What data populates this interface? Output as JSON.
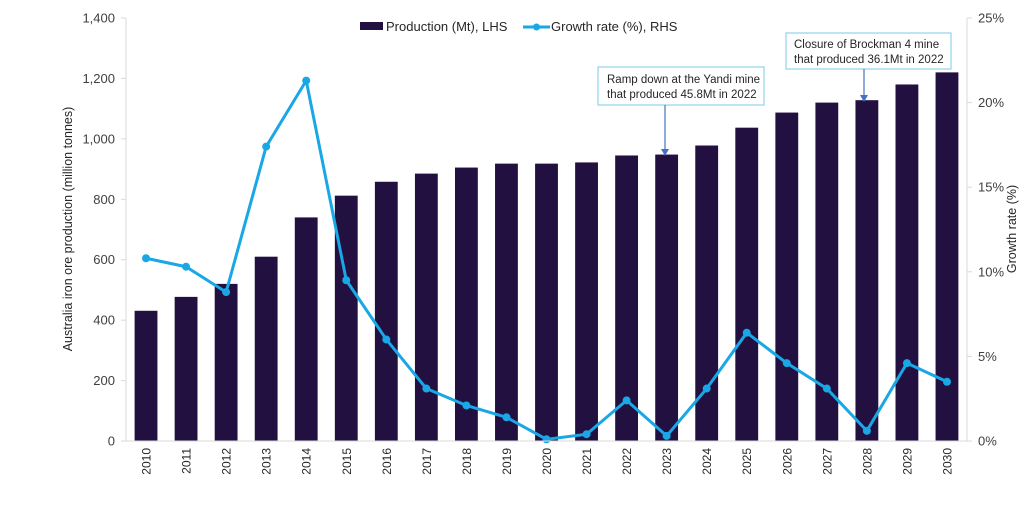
{
  "chart_data": {
    "type": "bar",
    "title": "",
    "categories": [
      "2010",
      "2011",
      "2012",
      "2013",
      "2014",
      "2015",
      "2016",
      "2017",
      "2018",
      "2019",
      "2020",
      "2021",
      "2022",
      "2023",
      "2024",
      "2025",
      "2026",
      "2027",
      "2028",
      "2029",
      "2030"
    ],
    "series": [
      {
        "name": "Production (Mt), LHS",
        "type": "bar",
        "axis": "left",
        "color": "#211040",
        "values": [
          431,
          477,
          520,
          610,
          740,
          812,
          858,
          885,
          905,
          918,
          918,
          922,
          945,
          948,
          978,
          1037,
          1087,
          1120,
          1128,
          1180,
          1220
        ]
      },
      {
        "name": "Growth rate (%), RHS",
        "type": "line",
        "axis": "right",
        "color": "#19a7e6",
        "values": [
          10.8,
          10.3,
          8.8,
          17.4,
          21.3,
          9.5,
          6.0,
          3.1,
          2.1,
          1.4,
          0.1,
          0.4,
          2.4,
          0.3,
          3.1,
          6.4,
          4.6,
          3.1,
          0.6,
          4.6,
          3.5
        ]
      }
    ],
    "ylabel": "Australia iron ore production (million tonnes)",
    "ylabel_right": "Growth rate (%)",
    "xlabel": "",
    "ylim": [
      0,
      1400
    ],
    "ylim_right": [
      0,
      25
    ],
    "yticks": [
      "0",
      "200",
      "400",
      "600",
      "800",
      "1,000",
      "1,200",
      "1,400"
    ],
    "yticks_values": [
      0,
      200,
      400,
      600,
      800,
      1000,
      1200,
      1400
    ],
    "yticks_right": [
      "0%",
      "5%",
      "10%",
      "15%",
      "20%",
      "25%"
    ],
    "yticks_right_values": [
      0,
      5,
      10,
      15,
      20,
      25
    ],
    "grid": false,
    "legend_position": "top-center",
    "annotations": [
      {
        "lines": [
          "Ramp down at the Yandi mine",
          "that produced 45.8Mt in 2022"
        ],
        "target_category": "2023"
      },
      {
        "lines": [
          "Closure of Brockman 4 mine",
          "that produced 36.1Mt in 2022"
        ],
        "target_category": "2028"
      }
    ]
  }
}
